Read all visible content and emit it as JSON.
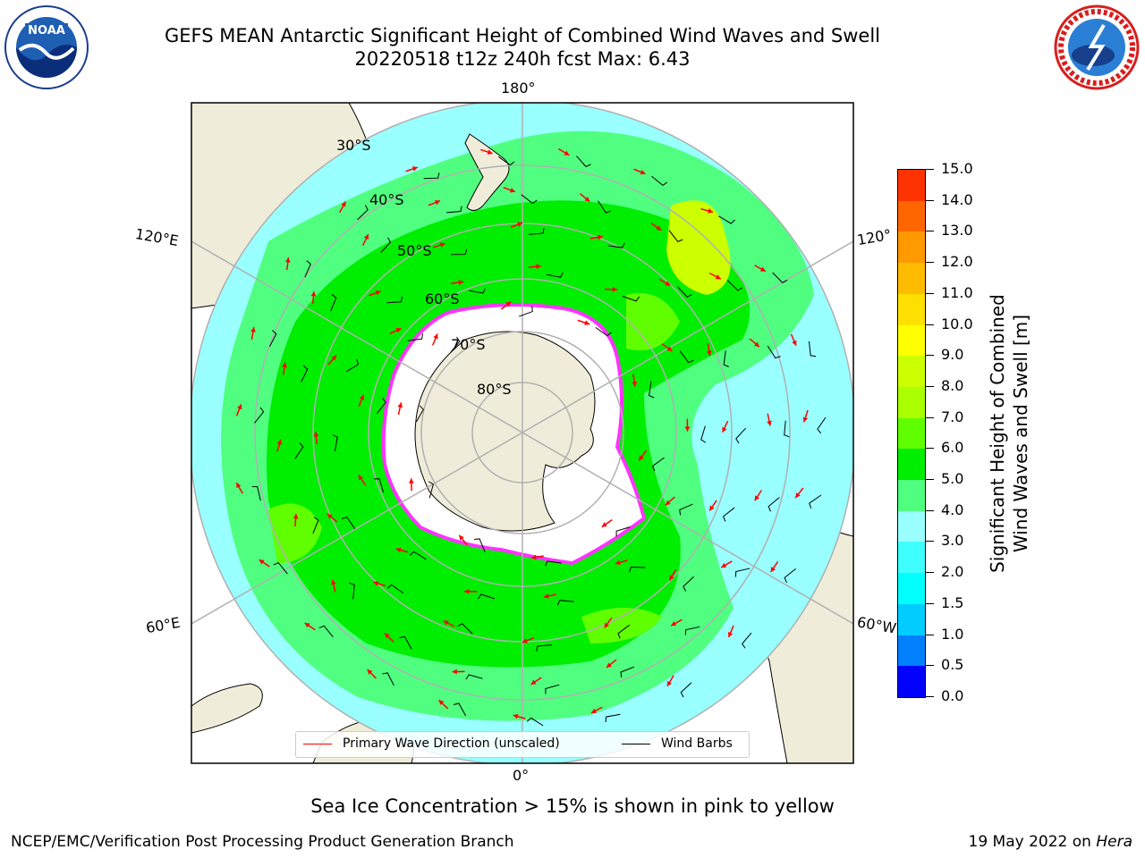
{
  "title": {
    "line1": "GEFS MEAN Antarctic Significant Height of Combined Wind Waves and Swell",
    "line2": "20220518 t12z 240h fcst   Max: 6.43"
  },
  "map": {
    "projection": "south polar stereographic",
    "longitude_labels": [
      {
        "text": "180°",
        "pos": "top"
      },
      {
        "text": "120°E",
        "pos": "upper-left"
      },
      {
        "text": "120°",
        "pos": "upper-right"
      },
      {
        "text": "60°E",
        "pos": "lower-left"
      },
      {
        "text": "60°W",
        "pos": "lower-right"
      },
      {
        "text": "0°",
        "pos": "bottom"
      }
    ],
    "latitude_labels": [
      "30°S",
      "40°S",
      "50°S",
      "60°S",
      "70°S",
      "80°S"
    ],
    "legend": [
      {
        "label": "Primary Wave Direction (unscaled)",
        "color": "#ff0000"
      },
      {
        "label": "Wind Barbs",
        "color": "#000000"
      }
    ],
    "colors": {
      "land": "#efedda",
      "ice": "#ffffff",
      "ice_edge": "#ff33ff",
      "wave_arrow": "#ff0000",
      "wind_barb": "#000000"
    }
  },
  "colorbar": {
    "title_line1": "Significant Height of Combined",
    "title_line2": "Wind Waves and Swell [m]",
    "ticks": [
      "0.0",
      "0.5",
      "1.0",
      "1.5",
      "2.0",
      "3.0",
      "4.0",
      "5.0",
      "6.0",
      "7.0",
      "8.0",
      "9.0",
      "10.0",
      "11.0",
      "12.0",
      "13.0",
      "14.0",
      "15.0"
    ],
    "colors": [
      "#0000ff",
      "#0080ff",
      "#00ccff",
      "#00ffff",
      "#40ffff",
      "#99ffff",
      "#50ff80",
      "#00ee00",
      "#60ff00",
      "#aaff00",
      "#ccff00",
      "#ffff00",
      "#ffe000",
      "#ffbb00",
      "#ff9900",
      "#ff6600",
      "#ff3300",
      "#ff0000"
    ]
  },
  "subtitle": "Sea Ice Concentration > 15% is shown in pink to yellow",
  "footer": {
    "credit": "NCEP/EMC/Verification Post Processing Product Generation Branch",
    "date": "19 May 2022 on",
    "host": "Hera"
  }
}
